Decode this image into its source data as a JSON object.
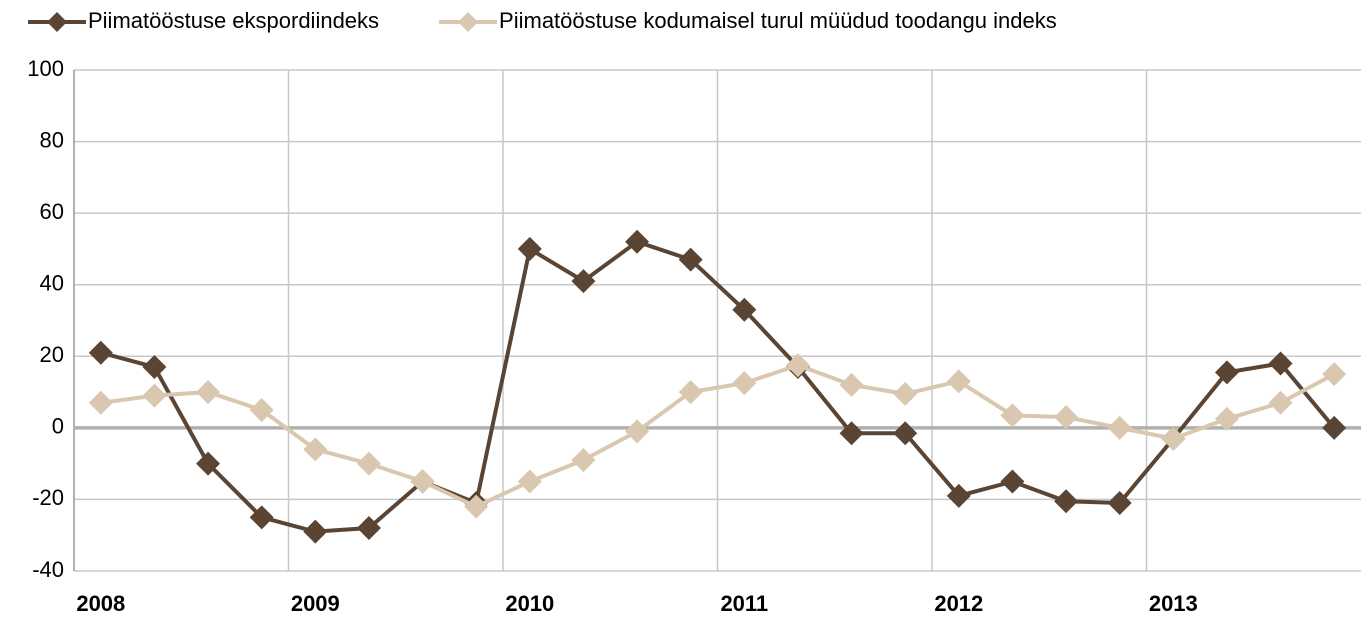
{
  "chart_data": {
    "type": "line",
    "categories": [
      "2008",
      null,
      null,
      null,
      "2009",
      null,
      null,
      null,
      "2010",
      null,
      null,
      null,
      "2011",
      null,
      null,
      null,
      "2012",
      null,
      null,
      null,
      "2013",
      null,
      null,
      null
    ],
    "series": [
      {
        "name": "Piimatööstuse ekspordiindeks",
        "color": "#5a4534",
        "values": [
          21,
          17,
          -10,
          -25,
          -29,
          -28,
          -15,
          -21,
          50,
          41,
          52,
          47,
          33,
          17,
          -1.5,
          -1.5,
          -19,
          -15,
          -20.5,
          -21,
          -3,
          15.5,
          18,
          0
        ]
      },
      {
        "name": "Piimatööstuse kodumaisel turul müüdud toodangu indeks",
        "color": "#d9c7b0",
        "values": [
          7,
          9,
          10,
          5,
          -6,
          -10,
          -15,
          -22,
          -15,
          -9,
          -1,
          10,
          12.5,
          17.5,
          12,
          9.5,
          13,
          3.5,
          3,
          0,
          -3,
          2.5,
          7,
          15
        ]
      }
    ],
    "ylim": [
      -40,
      100
    ],
    "yticks": [
      -40,
      -20,
      0,
      20,
      40,
      60,
      80,
      100
    ],
    "grid": true,
    "legend": "top"
  }
}
